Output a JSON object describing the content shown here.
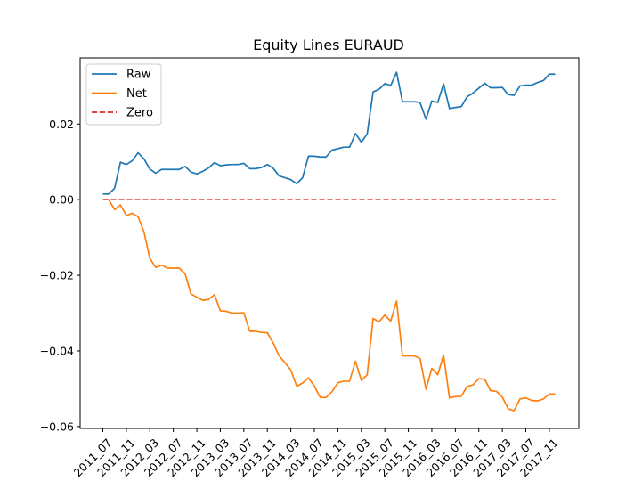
{
  "chart_data": {
    "type": "line",
    "title": "Equity Lines EURAUD",
    "xlabel": "",
    "ylabel": "",
    "ylim": [
      -0.0605,
      0.0375
    ],
    "grid": false,
    "legend_position": "top-left",
    "x_tick_labels": [
      "2011_07",
      "2011_11",
      "2012_03",
      "2012_07",
      "2012_11",
      "2013_03",
      "2013_07",
      "2013_11",
      "2014_03",
      "2014_07",
      "2014_11",
      "2015_03",
      "2015_07",
      "2015_11",
      "2016_03",
      "2016_07",
      "2016_11",
      "2017_03",
      "2017_07",
      "2017_11"
    ],
    "y_ticks": [
      {
        "value": 0.02,
        "label": "0.02"
      },
      {
        "value": 0.0,
        "label": "0.00"
      },
      {
        "value": -0.02,
        "label": "−0.02"
      },
      {
        "value": -0.04,
        "label": "−0.04"
      },
      {
        "value": -0.06,
        "label": "−0.06"
      }
    ],
    "series": [
      {
        "name": "Raw",
        "color": "#1f77b4",
        "style": "solid",
        "values": [
          0.0015,
          0.0015,
          0.003,
          0.0099,
          0.0093,
          0.0103,
          0.0124,
          0.0108,
          0.0081,
          0.007,
          0.008,
          0.008,
          0.008,
          0.008,
          0.0088,
          0.0073,
          0.0068,
          0.0075,
          0.0084,
          0.0098,
          0.009,
          0.0092,
          0.0093,
          0.0093,
          0.0096,
          0.0082,
          0.0082,
          0.0085,
          0.0093,
          0.0083,
          0.0063,
          0.0058,
          0.0053,
          0.0042,
          0.0058,
          0.0115,
          0.0115,
          0.0113,
          0.0113,
          0.0131,
          0.0135,
          0.0139,
          0.0139,
          0.0175,
          0.0152,
          0.0174,
          0.0285,
          0.0292,
          0.0307,
          0.0302,
          0.0337,
          0.0259,
          0.0259,
          0.0259,
          0.0257,
          0.0213,
          0.0261,
          0.0257,
          0.0306,
          0.0241,
          0.0244,
          0.0246,
          0.0272,
          0.0282,
          0.0295,
          0.0308,
          0.0296,
          0.0296,
          0.0297,
          0.0278,
          0.0276,
          0.0301,
          0.0303,
          0.0303,
          0.031,
          0.0315,
          0.0332,
          0.0332
        ]
      },
      {
        "name": "Net",
        "color": "#ff7f0e",
        "style": "solid",
        "values": [
          0.0,
          0.0,
          -0.0026,
          -0.0014,
          -0.0042,
          -0.0036,
          -0.0045,
          -0.0085,
          -0.0155,
          -0.0179,
          -0.0173,
          -0.0181,
          -0.0181,
          -0.0181,
          -0.0196,
          -0.0249,
          -0.0258,
          -0.0266,
          -0.0264,
          -0.0251,
          -0.0294,
          -0.0295,
          -0.03,
          -0.03,
          -0.0299,
          -0.0348,
          -0.0348,
          -0.0351,
          -0.0352,
          -0.0379,
          -0.0413,
          -0.0431,
          -0.0451,
          -0.0493,
          -0.0485,
          -0.0471,
          -0.0493,
          -0.0523,
          -0.0523,
          -0.0508,
          -0.0484,
          -0.048,
          -0.048,
          -0.0427,
          -0.0478,
          -0.0463,
          -0.0314,
          -0.0323,
          -0.0305,
          -0.0321,
          -0.0268,
          -0.0413,
          -0.0413,
          -0.0413,
          -0.042,
          -0.0501,
          -0.0446,
          -0.0463,
          -0.0411,
          -0.0524,
          -0.0521,
          -0.052,
          -0.0494,
          -0.049,
          -0.0473,
          -0.0475,
          -0.0505,
          -0.0507,
          -0.0522,
          -0.0553,
          -0.0558,
          -0.0527,
          -0.0524,
          -0.0531,
          -0.0532,
          -0.0527,
          -0.0514,
          -0.0514
        ]
      },
      {
        "name": "Zero",
        "color": "#d62728",
        "style": "dashed",
        "values": [
          0.0,
          0.0,
          0.0,
          0.0,
          0.0,
          0.0,
          0.0,
          0.0,
          0.0,
          0.0,
          0.0,
          0.0,
          0.0,
          0.0,
          0.0,
          0.0,
          0.0,
          0.0,
          0.0,
          0.0,
          0.0,
          0.0,
          0.0,
          0.0,
          0.0,
          0.0,
          0.0,
          0.0,
          0.0,
          0.0,
          0.0,
          0.0,
          0.0,
          0.0,
          0.0,
          0.0,
          0.0,
          0.0,
          0.0,
          0.0,
          0.0,
          0.0,
          0.0,
          0.0,
          0.0,
          0.0,
          0.0,
          0.0,
          0.0,
          0.0,
          0.0,
          0.0,
          0.0,
          0.0,
          0.0,
          0.0,
          0.0,
          0.0,
          0.0,
          0.0,
          0.0,
          0.0,
          0.0,
          0.0,
          0.0,
          0.0,
          0.0,
          0.0,
          0.0,
          0.0,
          0.0,
          0.0,
          0.0,
          0.0,
          0.0,
          0.0,
          0.0,
          0.0
        ]
      }
    ]
  }
}
